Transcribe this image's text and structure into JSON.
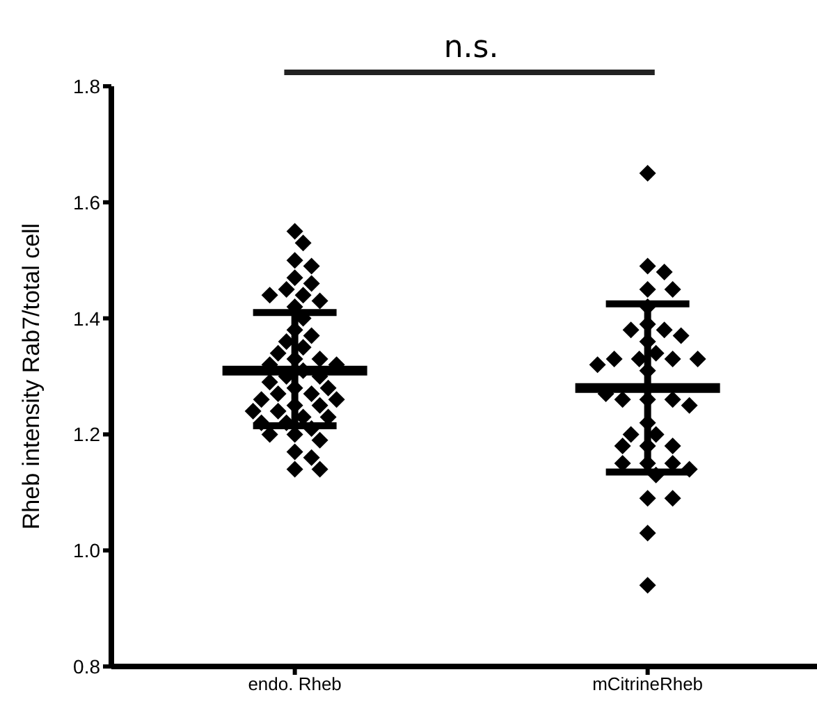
{
  "chart_data": {
    "type": "scatter",
    "ylabel": "Rheb intensity Rab7/total cell",
    "annotations": [
      "n.s."
    ],
    "categories": [
      "endo. Rheb",
      "mCitrineRheb"
    ],
    "ylim": [
      0.8,
      1.8
    ],
    "yticks": [
      {
        "value": 0.8,
        "label": "0.8"
      },
      {
        "value": 1,
        "label": "1.0"
      },
      {
        "value": 1.2,
        "label": "1.2"
      },
      {
        "value": 1.4,
        "label": "1.4"
      },
      {
        "value": 1.6,
        "label": "1.6"
      },
      {
        "value": 1.8,
        "label": "1.8"
      }
    ],
    "grid": false,
    "legend": false,
    "marker": "diamond",
    "series": [
      {
        "color": "#000000",
        "x": [
          "endo. Rheb",
          "endo. Rheb",
          "endo. Rheb",
          "endo. Rheb",
          "endo. Rheb",
          "endo. Rheb",
          "endo. Rheb",
          "endo. Rheb",
          "endo. Rheb",
          "endo. Rheb",
          "endo. Rheb",
          "endo. Rheb",
          "endo. Rheb",
          "endo. Rheb",
          "endo. Rheb",
          "endo. Rheb",
          "endo. Rheb",
          "endo. Rheb",
          "endo. Rheb",
          "endo. Rheb",
          "endo. Rheb",
          "endo. Rheb",
          "endo. Rheb",
          "endo. Rheb",
          "endo. Rheb",
          "endo. Rheb",
          "endo. Rheb",
          "endo. Rheb",
          "endo. Rheb",
          "endo. Rheb",
          "endo. Rheb",
          "endo. Rheb",
          "endo. Rheb",
          "endo. Rheb",
          "endo. Rheb",
          "endo. Rheb",
          "endo. Rheb",
          "endo. Rheb",
          "endo. Rheb",
          "endo. Rheb",
          "endo. Rheb",
          "endo. Rheb",
          "endo. Rheb",
          "endo. Rheb",
          "endo. Rheb",
          "endo. Rheb",
          "endo. Rheb"
        ],
        "values": [
          1.55,
          1.53,
          1.5,
          1.49,
          1.47,
          1.46,
          1.45,
          1.44,
          1.44,
          1.43,
          1.42,
          1.4,
          1.38,
          1.37,
          1.36,
          1.35,
          1.34,
          1.33,
          1.33,
          1.32,
          1.32,
          1.31,
          1.3,
          1.3,
          1.29,
          1.28,
          1.28,
          1.27,
          1.27,
          1.26,
          1.26,
          1.25,
          1.25,
          1.24,
          1.24,
          1.23,
          1.23,
          1.22,
          1.22,
          1.21,
          1.2,
          1.2,
          1.19,
          1.17,
          1.16,
          1.14,
          1.14
        ]
      },
      {
        "color": "#000000",
        "x": [
          "mCitrineRheb",
          "mCitrineRheb",
          "mCitrineRheb",
          "mCitrineRheb",
          "mCitrineRheb",
          "mCitrineRheb",
          "mCitrineRheb",
          "mCitrineRheb",
          "mCitrineRheb",
          "mCitrineRheb",
          "mCitrineRheb",
          "mCitrineRheb",
          "mCitrineRheb",
          "mCitrineRheb",
          "mCitrineRheb",
          "mCitrineRheb",
          "mCitrineRheb",
          "mCitrineRheb",
          "mCitrineRheb",
          "mCitrineRheb",
          "mCitrineRheb",
          "mCitrineRheb",
          "mCitrineRheb",
          "mCitrineRheb",
          "mCitrineRheb",
          "mCitrineRheb",
          "mCitrineRheb",
          "mCitrineRheb",
          "mCitrineRheb",
          "mCitrineRheb",
          "mCitrineRheb",
          "mCitrineRheb",
          "mCitrineRheb",
          "mCitrineRheb",
          "mCitrineRheb",
          "mCitrineRheb",
          "mCitrineRheb",
          "mCitrineRheb"
        ],
        "values": [
          1.65,
          1.49,
          1.48,
          1.45,
          1.45,
          1.42,
          1.39,
          1.38,
          1.38,
          1.37,
          1.36,
          1.34,
          1.33,
          1.33,
          1.33,
          1.33,
          1.32,
          1.31,
          1.26,
          1.26,
          1.26,
          1.25,
          1.22,
          1.2,
          1.2,
          1.18,
          1.18,
          1.18,
          1.15,
          1.15,
          1.15,
          1.14,
          1.13,
          1.09,
          1.09,
          1.03,
          0.94,
          1.27
        ]
      },
      {
        "type": "box",
        "color": "#000000",
        "boxes": [
          {
            "low": 1.215,
            "q1": 1.31,
            "median": 1.31,
            "q3": 1.31,
            "high": 1.41
          },
          {
            "low": 1.135,
            "q1": 1.28,
            "median": 1.28,
            "q3": 1.28,
            "high": 1.425
          }
        ]
      }
    ]
  }
}
